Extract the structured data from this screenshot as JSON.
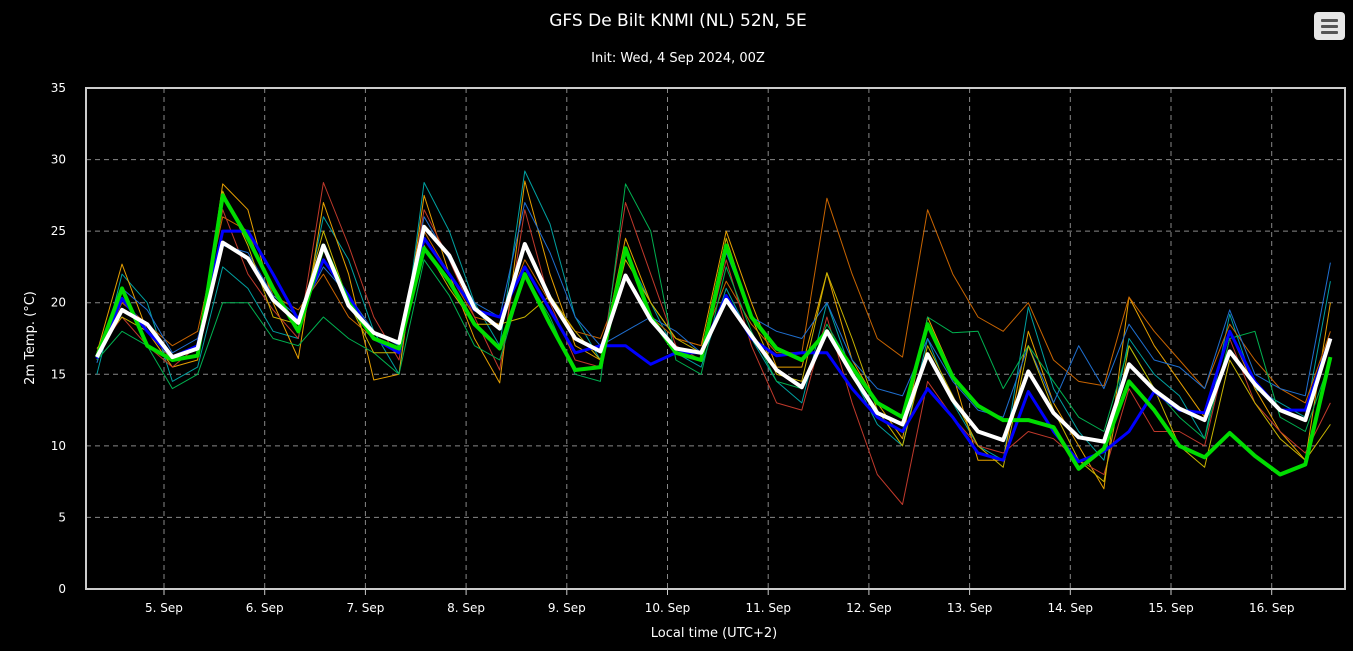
{
  "chart_data": {
    "type": "line",
    "title": "GFS De Bilt KNMI (NL) 52N, 5E",
    "subtitle": "Init: Wed, 4 Sep 2024, 00Z",
    "xlabel": "Local time (UTC+2)",
    "ylabel": "2m Temp. (°C)",
    "ylim": [
      0,
      35
    ],
    "yticks": [
      "0",
      "5",
      "10",
      "15",
      "20",
      "25",
      "30",
      "35"
    ],
    "xticks": [
      "5. Sep",
      "6. Sep",
      "7. Sep",
      "8. Sep",
      "9. Sep",
      "10. Sep",
      "11. Sep",
      "12. Sep",
      "13. Sep",
      "14. Sep",
      "15. Sep",
      "16. Sep"
    ],
    "grid": true,
    "x": [
      "2024-09-04T08:00",
      "2024-09-04T14:00",
      "2024-09-04T20:00",
      "2024-09-05T02:00",
      "2024-09-05T08:00",
      "2024-09-05T14:00",
      "2024-09-05T20:00",
      "2024-09-06T02:00",
      "2024-09-06T08:00",
      "2024-09-06T14:00",
      "2024-09-06T20:00",
      "2024-09-07T02:00",
      "2024-09-07T08:00",
      "2024-09-07T14:00",
      "2024-09-07T20:00",
      "2024-09-08T02:00",
      "2024-09-08T08:00",
      "2024-09-08T14:00",
      "2024-09-08T20:00",
      "2024-09-09T02:00",
      "2024-09-09T08:00",
      "2024-09-09T14:00",
      "2024-09-09T20:00",
      "2024-09-10T02:00",
      "2024-09-10T08:00",
      "2024-09-10T14:00",
      "2024-09-10T20:00",
      "2024-09-11T02:00",
      "2024-09-11T08:00",
      "2024-09-11T14:00",
      "2024-09-11T20:00",
      "2024-09-12T02:00",
      "2024-09-12T08:00",
      "2024-09-12T14:00",
      "2024-09-12T20:00",
      "2024-09-13T02:00",
      "2024-09-13T08:00",
      "2024-09-13T14:00",
      "2024-09-13T20:00",
      "2024-09-14T02:00",
      "2024-09-14T08:00",
      "2024-09-14T14:00",
      "2024-09-14T20:00",
      "2024-09-15T02:00",
      "2024-09-15T08:00",
      "2024-09-15T14:00",
      "2024-09-15T20:00",
      "2024-09-16T02:00",
      "2024-09-16T08:00",
      "2024-09-16T14:00"
    ],
    "series": [
      {
        "color": "#00a0a0",
        "width": 1,
        "values": [
          15.0,
          22.0,
          20.0,
          14.5,
          15.5,
          22.5,
          21.0,
          18.0,
          17.5,
          26.0,
          23.0,
          18.0,
          15.0,
          28.4,
          25.0,
          20.0,
          17.0,
          29.2,
          25.5,
          19.0,
          16.0,
          23.5,
          20.0,
          16.5,
          15.5,
          21.0,
          17.5,
          14.5,
          13.0,
          20.0,
          15.0,
          11.5,
          10.0,
          17.5,
          13.0,
          10.0,
          9.0,
          19.7,
          14.0,
          11.0,
          9.0,
          17.5,
          15.0,
          13.5,
          10.5,
          19.2,
          14.0,
          13.0,
          12.0,
          21.5
        ]
      },
      {
        "color": "#e69f00",
        "width": 1,
        "values": [
          16.5,
          22.7,
          18.0,
          15.5,
          16.0,
          28.3,
          26.5,
          20.0,
          16.1,
          27.0,
          22.0,
          14.6,
          15.0,
          27.5,
          22.0,
          17.5,
          14.4,
          28.5,
          22.0,
          17.0,
          16.0,
          24.5,
          20.0,
          17.5,
          17.0,
          25.0,
          20.0,
          15.5,
          15.5,
          22.1,
          16.0,
          13.0,
          10.5,
          19.0,
          15.0,
          9.0,
          9.0,
          18.0,
          13.0,
          10.0,
          7.0,
          20.4,
          17.0,
          14.5,
          12.0,
          18.0,
          14.0,
          11.0,
          9.0,
          20.0
        ]
      },
      {
        "color": "#c86400",
        "width": 1,
        "values": [
          16.0,
          20.0,
          18.5,
          17.0,
          18.0,
          26.0,
          25.0,
          20.5,
          19.5,
          22.0,
          19.0,
          17.5,
          16.5,
          25.0,
          22.0,
          19.0,
          18.5,
          23.0,
          20.0,
          18.0,
          17.5,
          22.0,
          19.0,
          17.5,
          17.0,
          21.5,
          18.5,
          16.5,
          16.5,
          27.3,
          22.0,
          17.5,
          16.2,
          26.5,
          22.0,
          19.0,
          18.0,
          20.0,
          16.0,
          14.5,
          14.2,
          20.4,
          18.0,
          16.0,
          14.0,
          18.5,
          16.0,
          14.0,
          13.0,
          18.0
        ]
      },
      {
        "color": "#c0392b",
        "width": 1,
        "values": [
          16.5,
          19.0,
          17.0,
          15.5,
          17.0,
          26.5,
          22.0,
          19.5,
          17.5,
          28.4,
          24.0,
          19.0,
          16.0,
          26.5,
          23.0,
          19.0,
          15.3,
          26.5,
          20.0,
          16.0,
          15.5,
          27.0,
          22.0,
          17.0,
          16.0,
          23.0,
          17.0,
          13.0,
          12.5,
          19.0,
          13.0,
          8.0,
          5.9,
          14.5,
          12.0,
          10.0,
          9.5,
          11.0,
          10.5,
          9.0,
          8.0,
          14.0,
          11.0,
          11.0,
          10.0,
          17.5,
          13.0,
          11.0,
          9.5,
          13.0
        ]
      },
      {
        "color": "#1f6fd0",
        "width": 1,
        "values": [
          15.8,
          21.0,
          19.5,
          16.5,
          17.5,
          24.0,
          23.5,
          20.5,
          19.0,
          22.5,
          20.5,
          18.0,
          17.0,
          26.0,
          23.0,
          20.0,
          19.0,
          27.0,
          23.5,
          19.0,
          17.0,
          18.0,
          19.0,
          18.0,
          16.5,
          23.5,
          19.0,
          18.0,
          17.5,
          20.0,
          16.0,
          14.0,
          13.5,
          17.5,
          14.5,
          12.5,
          12.0,
          17.0,
          13.0,
          17.0,
          14.0,
          18.5,
          16.0,
          15.5,
          14.0,
          19.5,
          15.0,
          14.0,
          13.5,
          22.8
        ]
      },
      {
        "color": "#00b050",
        "width": 1,
        "values": [
          16.0,
          18.0,
          17.0,
          14.0,
          15.0,
          20.0,
          20.0,
          17.5,
          17.0,
          19.0,
          17.5,
          16.5,
          15.0,
          23.0,
          20.5,
          17.0,
          16.0,
          22.0,
          19.0,
          15.0,
          14.5,
          28.3,
          25.0,
          16.0,
          15.0,
          22.5,
          18.0,
          14.5,
          14.0,
          18.5,
          15.5,
          12.0,
          11.0,
          19.0,
          17.9,
          18.0,
          14.0,
          17.0,
          14.5,
          12.0,
          11.0,
          17.0,
          14.0,
          12.0,
          10.5,
          17.5,
          18.0,
          12.0,
          11.0,
          16.0
        ]
      },
      {
        "color": "#c8b400",
        "width": 1,
        "values": [
          16.8,
          19.0,
          18.0,
          16.0,
          17.0,
          27.8,
          24.0,
          19.0,
          18.5,
          25.0,
          20.0,
          16.5,
          16.5,
          24.0,
          21.0,
          18.5,
          18.5,
          19.0,
          20.5,
          18.0,
          16.0,
          23.0,
          20.0,
          17.5,
          16.5,
          24.5,
          19.0,
          15.0,
          14.5,
          22.1,
          17.5,
          12.5,
          10.0,
          17.0,
          13.5,
          10.0,
          8.5,
          17.0,
          12.5,
          9.0,
          7.5,
          17.0,
          14.0,
          10.0,
          8.5,
          16.0,
          13.0,
          10.5,
          9.0,
          11.5
        ]
      },
      {
        "color": "#0000ff",
        "width": 3,
        "values": [
          16.1,
          20.3,
          18.0,
          16.2,
          17.0,
          25.0,
          25.0,
          22.0,
          18.8,
          23.0,
          20.5,
          17.5,
          16.5,
          24.5,
          22.0,
          19.5,
          19.0,
          22.5,
          19.5,
          16.5,
          17.0,
          17.0,
          15.7,
          16.5,
          16.5,
          20.5,
          17.5,
          16.3,
          16.5,
          16.5,
          14.0,
          12.0,
          11.0,
          14.0,
          12.0,
          9.5,
          9.0,
          13.8,
          11.0,
          8.9,
          9.6,
          11.0,
          13.8,
          12.5,
          12.3,
          18.0,
          14.5,
          12.5,
          12.5,
          17.5
        ]
      },
      {
        "color": "#00dd00",
        "width": 4,
        "values": [
          16.2,
          21.0,
          17.0,
          16.0,
          16.3,
          27.5,
          24.5,
          21.0,
          18.0,
          24.0,
          20.0,
          17.5,
          16.8,
          23.8,
          21.5,
          18.5,
          16.8,
          22.0,
          18.5,
          15.3,
          15.5,
          23.8,
          19.0,
          16.5,
          16.0,
          24.0,
          19.0,
          16.8,
          16.0,
          18.0,
          15.5,
          13.0,
          12.0,
          18.5,
          14.8,
          12.8,
          11.8,
          11.8,
          11.3,
          8.4,
          9.8,
          14.5,
          12.5,
          10.0,
          9.2,
          10.9,
          9.3,
          8.0,
          8.7,
          16.2
        ]
      },
      {
        "color": "#ffffff",
        "width": 4,
        "values": [
          16.2,
          19.5,
          18.5,
          16.2,
          16.8,
          24.2,
          23.1,
          20.2,
          18.6,
          24.0,
          19.8,
          17.9,
          17.2,
          25.3,
          23.3,
          19.6,
          18.2,
          24.1,
          20.3,
          17.5,
          16.6,
          21.9,
          18.8,
          16.8,
          16.5,
          20.2,
          17.7,
          15.3,
          14.1,
          18.0,
          15.0,
          12.3,
          11.5,
          16.4,
          13.2,
          11.0,
          10.4,
          15.2,
          12.3,
          10.6,
          10.3,
          15.7,
          13.9,
          12.6,
          11.8,
          16.6,
          14.3,
          12.5,
          11.8,
          17.5
        ]
      }
    ]
  },
  "menu": {
    "icon": "hamburger-menu-icon"
  }
}
